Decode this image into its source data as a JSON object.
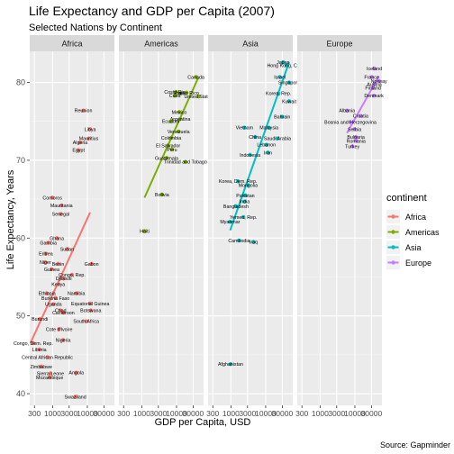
{
  "chart_data": {
    "type": "scatter",
    "title": "Life Expectancy and GDP per Capita (2007)",
    "subtitle": "Selected Nations by Continent",
    "xlabel": "GDP per Capita, USD",
    "ylabel": "Life Expectancy, Years",
    "caption": "Source: Gapminder",
    "x_scale": "log10",
    "xlim": [
      220,
      60000
    ],
    "ylim": [
      38.5,
      84
    ],
    "x_ticks": [
      300,
      1000,
      3000,
      10000,
      30000
    ],
    "x_tick_labels": [
      "300",
      "1000",
      "3000",
      "10000",
      "30000"
    ],
    "y_ticks": [
      40,
      50,
      60,
      70,
      80
    ],
    "grid": true,
    "legend": {
      "title": "continent",
      "position": "right"
    },
    "facets": [
      "Africa",
      "Americas",
      "Asia",
      "Europe"
    ],
    "colors": {
      "Africa": "#F8766D",
      "Americas": "#7CAE00",
      "Asia": "#00BFC4",
      "Europe": "#C77CFF"
    },
    "trend_lines": [
      {
        "facet": "Africa",
        "x": [
          230,
          12000
        ],
        "y": [
          46.5,
          63.3
        ]
      },
      {
        "facet": "Americas",
        "x": [
          1200,
          42000
        ],
        "y": [
          65.2,
          80.6
        ]
      },
      {
        "facet": "Asia",
        "x": [
          950,
          47000
        ],
        "y": [
          61.0,
          82.6
        ]
      },
      {
        "facet": "Europe",
        "x": [
          5900,
          49000
        ],
        "y": [
          73.5,
          80.8
        ]
      }
    ],
    "series": [
      {
        "name": "Africa",
        "points": [
          {
            "label": "Reunion",
            "x": 7670,
            "y": 76.4
          },
          {
            "label": "Libya",
            "x": 12060,
            "y": 74.0
          },
          {
            "label": "Mauritius",
            "x": 10960,
            "y": 72.8
          },
          {
            "label": "Algeria",
            "x": 6220,
            "y": 72.3
          },
          {
            "label": "Egypt",
            "x": 5580,
            "y": 71.3
          },
          {
            "label": "Comoros",
            "x": 986,
            "y": 65.2
          },
          {
            "label": "Mauritania",
            "x": 1803,
            "y": 64.2
          },
          {
            "label": "Senegal",
            "x": 1712,
            "y": 63.1
          },
          {
            "label": "Ghana",
            "x": 1328,
            "y": 60.0
          },
          {
            "label": "Gambia",
            "x": 753,
            "y": 59.4
          },
          {
            "label": "Sudan",
            "x": 2602,
            "y": 58.6
          },
          {
            "label": "Eritrea",
            "x": 641,
            "y": 58.0
          },
          {
            "label": "Benin",
            "x": 1441,
            "y": 56.7
          },
          {
            "label": "Gabon",
            "x": 13206,
            "y": 56.7
          },
          {
            "label": "Guinea",
            "x": 943,
            "y": 56.0
          },
          {
            "label": "Congo, Rep.",
            "x": 3633,
            "y": 55.3
          },
          {
            "label": "Djibouti",
            "x": 2082,
            "y": 54.8
          },
          {
            "label": "Kenya",
            "x": 1463,
            "y": 54.1
          },
          {
            "label": "Ethiopia",
            "x": 690,
            "y": 52.9
          },
          {
            "label": "Namibia",
            "x": 4811,
            "y": 52.9
          },
          {
            "label": "Burkina Faso",
            "x": 1217,
            "y": 52.3
          },
          {
            "label": "Uganda",
            "x": 1056,
            "y": 51.5
          },
          {
            "label": "Equatorial Guinea",
            "x": 12154,
            "y": 51.6
          },
          {
            "label": "Botswana",
            "x": 12570,
            "y": 50.7
          },
          {
            "label": "Cameroon",
            "x": 2042,
            "y": 50.4
          },
          {
            "label": "South Africa",
            "x": 9270,
            "y": 49.3
          },
          {
            "label": "Burundi",
            "x": 430,
            "y": 49.6
          },
          {
            "label": "Cote d'Ivoire",
            "x": 1545,
            "y": 48.3
          },
          {
            "label": "Chad",
            "x": 1704,
            "y": 50.7
          },
          {
            "label": "Niger",
            "x": 619,
            "y": 56.9
          },
          {
            "label": "Congo, Dem. Rep.",
            "x": 278,
            "y": 46.5
          },
          {
            "label": "Nigeria",
            "x": 2014,
            "y": 46.9
          },
          {
            "label": "Liberia",
            "x": 415,
            "y": 45.7
          },
          {
            "label": "Central African Republic",
            "x": 706,
            "y": 44.7
          },
          {
            "label": "Zimbabwe",
            "x": 470,
            "y": 43.5
          },
          {
            "label": "Sierra Leone",
            "x": 863,
            "y": 42.6
          },
          {
            "label": "Angola",
            "x": 4797,
            "y": 42.7
          },
          {
            "label": "Mozambique",
            "x": 824,
            "y": 42.1
          },
          {
            "label": "Swaziland",
            "x": 4513,
            "y": 39.6
          }
        ]
      },
      {
        "name": "Americas",
        "points": [
          {
            "label": "Canada",
            "x": 36319,
            "y": 80.7
          },
          {
            "label": "Chile",
            "x": 13172,
            "y": 78.6
          },
          {
            "label": "Costa Rica",
            "x": 9645,
            "y": 78.8
          },
          {
            "label": "Cuba",
            "x": 8948,
            "y": 78.3
          },
          {
            "label": "Puerto Rico",
            "x": 19329,
            "y": 78.7
          },
          {
            "label": "United States",
            "x": 42952,
            "y": 78.2
          },
          {
            "label": "Mexico",
            "x": 11978,
            "y": 76.2
          },
          {
            "label": "Argentina",
            "x": 12779,
            "y": 75.3
          },
          {
            "label": "Venezuela",
            "x": 11416,
            "y": 73.7
          },
          {
            "label": "Colombia",
            "x": 7007,
            "y": 72.9
          },
          {
            "label": "Peru",
            "x": 7409,
            "y": 71.4
          },
          {
            "label": "El Salvador",
            "x": 5728,
            "y": 71.9
          },
          {
            "label": "Ecuador",
            "x": 6873,
            "y": 75.0
          },
          {
            "label": "Trinidad and Tobago",
            "x": 18008,
            "y": 69.8
          },
          {
            "label": "Guatemala",
            "x": 5186,
            "y": 70.3
          },
          {
            "label": "Bolivia",
            "x": 3822,
            "y": 65.6
          },
          {
            "label": "Haiti",
            "x": 1202,
            "y": 60.9
          }
        ]
      },
      {
        "name": "Asia",
        "points": [
          {
            "label": "Hong Kong, China",
            "x": 39725,
            "y": 82.2
          },
          {
            "label": "Japan",
            "x": 31656,
            "y": 82.6
          },
          {
            "label": "Israel",
            "x": 25523,
            "y": 80.7
          },
          {
            "label": "Singapore",
            "x": 47143,
            "y": 80.0
          },
          {
            "label": "Korea, Rep.",
            "x": 23348,
            "y": 78.6
          },
          {
            "label": "Kuwait",
            "x": 47307,
            "y": 77.6
          },
          {
            "label": "Bahrain",
            "x": 29796,
            "y": 75.6
          },
          {
            "label": "Vietnam",
            "x": 2442,
            "y": 74.2
          },
          {
            "label": "Malaysia",
            "x": 12452,
            "y": 74.2
          },
          {
            "label": "China",
            "x": 4959,
            "y": 73.0
          },
          {
            "label": "Saudi Arabia",
            "x": 21655,
            "y": 72.8
          },
          {
            "label": "Lebanon",
            "x": 10461,
            "y": 72.0
          },
          {
            "label": "Indonesia",
            "x": 3541,
            "y": 70.7
          },
          {
            "label": "Iran",
            "x": 11606,
            "y": 71.0
          },
          {
            "label": "Korea, Dem. Rep.",
            "x": 1593,
            "y": 67.3
          },
          {
            "label": "Mongolia",
            "x": 3096,
            "y": 66.8
          },
          {
            "label": "Pakistan",
            "x": 2606,
            "y": 65.5
          },
          {
            "label": "India",
            "x": 2452,
            "y": 64.7
          },
          {
            "label": "Bangladesh",
            "x": 1391,
            "y": 64.1
          },
          {
            "label": "Yemen, Rep.",
            "x": 2281,
            "y": 62.7
          },
          {
            "label": "Myanmar",
            "x": 944,
            "y": 62.1
          },
          {
            "label": "Cambodia",
            "x": 1714,
            "y": 59.7
          },
          {
            "label": "Iraq",
            "x": 4471,
            "y": 59.5
          },
          {
            "label": "Afghanistan",
            "x": 975,
            "y": 43.8
          }
        ]
      },
      {
        "name": "Europe",
        "points": [
          {
            "label": "Iceland",
            "x": 36181,
            "y": 81.8
          },
          {
            "label": "France",
            "x": 30470,
            "y": 80.7
          },
          {
            "label": "Austria",
            "x": 36126,
            "y": 79.8
          },
          {
            "label": "Finland",
            "x": 33207,
            "y": 79.3
          },
          {
            "label": "Denmark",
            "x": 35278,
            "y": 78.3
          },
          {
            "label": "Norway",
            "x": 49357,
            "y": 80.2
          },
          {
            "label": "Albania",
            "x": 5937,
            "y": 76.4
          },
          {
            "label": "Croatia",
            "x": 14619,
            "y": 75.7
          },
          {
            "label": "Bosnia and Herzegovina",
            "x": 7446,
            "y": 74.9
          },
          {
            "label": "Serbia",
            "x": 9787,
            "y": 74.0
          },
          {
            "label": "Bulgaria",
            "x": 10681,
            "y": 73.0
          },
          {
            "label": "Romania",
            "x": 10808,
            "y": 72.5
          },
          {
            "label": "Turkey",
            "x": 8458,
            "y": 71.8
          }
        ]
      }
    ]
  }
}
